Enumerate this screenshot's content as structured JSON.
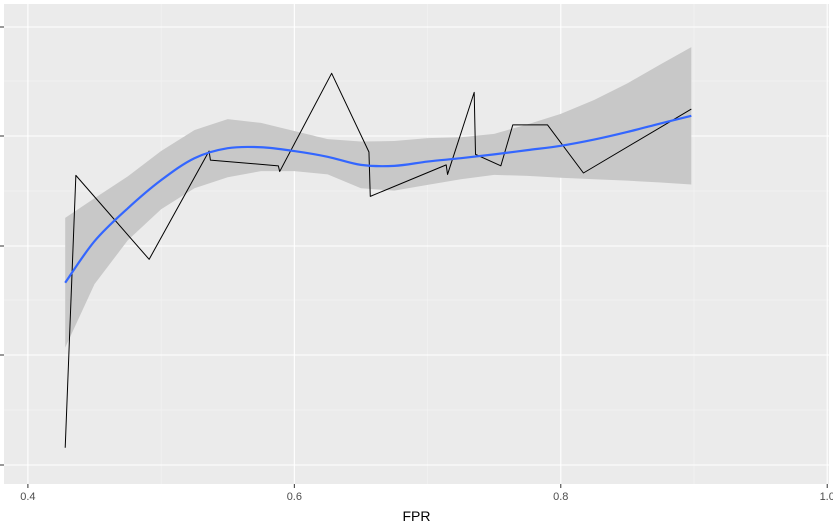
{
  "chart_data": {
    "type": "line",
    "title": "",
    "xlabel": "FPR",
    "ylabel": "",
    "xlim": [
      0.4,
      1.0
    ],
    "ylim": [
      0,
      1
    ],
    "grid": true,
    "x_ticks": [
      0.4,
      0.6,
      0.8,
      1.0
    ],
    "x_tick_labels": [
      "0.4",
      "0.6",
      "0.8",
      "1.0"
    ],
    "y_tick_labels_visible": false,
    "series": [
      {
        "type": "line",
        "color": "#000000",
        "x": [
          0.428,
          0.436,
          0.491,
          0.536,
          0.537,
          0.588,
          0.589,
          0.628,
          0.656,
          0.657,
          0.714,
          0.715,
          0.735,
          0.736,
          0.755,
          0.764,
          0.79,
          0.817,
          0.898
        ],
        "y": [
          0.076,
          0.647,
          0.471,
          0.698,
          0.679,
          0.667,
          0.655,
          0.861,
          0.696,
          0.603,
          0.669,
          0.649,
          0.821,
          0.691,
          0.667,
          0.753,
          0.753,
          0.652,
          0.786
        ]
      },
      {
        "type": "smooth",
        "color": "#3366ff",
        "band_color": "#c8c8c8",
        "x": [
          0.428,
          0.45,
          0.475,
          0.5,
          0.525,
          0.55,
          0.575,
          0.6,
          0.625,
          0.65,
          0.675,
          0.7,
          0.725,
          0.75,
          0.775,
          0.8,
          0.825,
          0.85,
          0.875,
          0.898
        ],
        "y": [
          0.422,
          0.509,
          0.578,
          0.637,
          0.683,
          0.704,
          0.706,
          0.698,
          0.686,
          0.669,
          0.667,
          0.676,
          0.683,
          0.691,
          0.7,
          0.709,
          0.722,
          0.738,
          0.756,
          0.772
        ],
        "lower": [
          0.286,
          0.419,
          0.511,
          0.576,
          0.62,
          0.643,
          0.656,
          0.656,
          0.649,
          0.62,
          0.615,
          0.627,
          0.639,
          0.648,
          0.646,
          0.642,
          0.639,
          0.636,
          0.632,
          0.628
        ],
        "upper": [
          0.558,
          0.599,
          0.645,
          0.698,
          0.742,
          0.765,
          0.757,
          0.74,
          0.723,
          0.718,
          0.719,
          0.725,
          0.727,
          0.734,
          0.754,
          0.776,
          0.805,
          0.84,
          0.88,
          0.916
        ]
      }
    ]
  }
}
